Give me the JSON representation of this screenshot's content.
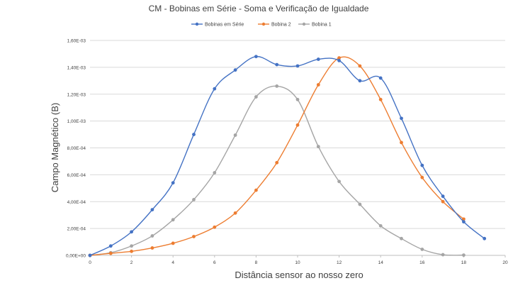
{
  "chart_data": {
    "type": "line",
    "title": "CM - Bobinas em Série - Soma e Verificação de Igualdade",
    "xlabel": "Distância sensor ao nosso zero",
    "ylabel": "Campo Magnético (B)",
    "xlim": [
      0,
      20
    ],
    "ylim": [
      0,
      0.0016
    ],
    "x_ticks": [
      0,
      2,
      4,
      6,
      8,
      10,
      12,
      14,
      16,
      18,
      20
    ],
    "y_ticks": [
      0,
      0.0002,
      0.0004,
      0.0006,
      0.0008,
      0.001,
      0.0012,
      0.0014,
      0.0016
    ],
    "x_tick_labels": [
      "0",
      "2",
      "4",
      "6",
      "8",
      "10",
      "12",
      "14",
      "16",
      "18",
      "20"
    ],
    "y_tick_labels": [
      "0,00E+00",
      "2,00E-04",
      "4,00E-04",
      "6,00E-04",
      "8,00E-04",
      "1,00E-03",
      "1,20E-03",
      "1,40E-03",
      "1,60E-03"
    ],
    "grid": "horizontal",
    "legend_position": "top",
    "series": [
      {
        "name": "Bobinas em Série",
        "color": "#4472c4",
        "x": [
          0,
          1,
          2,
          3,
          4,
          5,
          6,
          7,
          8,
          9,
          10,
          11,
          12,
          13,
          14,
          15,
          16,
          17,
          18,
          19
        ],
        "y": [
          0,
          7e-05,
          0.000175,
          0.00034,
          0.00054,
          0.0009,
          0.00124,
          0.00138,
          0.00148,
          0.00142,
          0.00141,
          0.00146,
          0.00145,
          0.0013,
          0.00132,
          0.00102,
          0.00067,
          0.00044,
          0.00025,
          0.000125
        ]
      },
      {
        "name": "Bobina 2",
        "color": "#ed7d31",
        "x": [
          0,
          1,
          2,
          3,
          4,
          5,
          6,
          7,
          8,
          9,
          10,
          11,
          12,
          13,
          14,
          15,
          16,
          17,
          18
        ],
        "y": [
          0,
          1.5e-05,
          3e-05,
          5.5e-05,
          9e-05,
          0.00014,
          0.00021,
          0.000315,
          0.000485,
          0.00069,
          0.00097,
          0.00127,
          0.00147,
          0.00141,
          0.00116,
          0.00084,
          0.00058,
          0.0004,
          0.00027
        ]
      },
      {
        "name": "Bobina 1",
        "color": "#a5a5a5",
        "x": [
          0,
          1,
          2,
          3,
          4,
          5,
          6,
          7,
          8,
          9,
          10,
          11,
          12,
          13,
          14,
          15,
          16,
          17,
          18
        ],
        "y": [
          0,
          2e-05,
          7e-05,
          0.000145,
          0.000265,
          0.000415,
          0.000615,
          0.000895,
          0.00118,
          0.00126,
          0.00116,
          0.00081,
          0.00055,
          0.00038,
          0.00022,
          0.000125,
          4.5e-05,
          5e-06,
          2e-06
        ]
      }
    ]
  }
}
